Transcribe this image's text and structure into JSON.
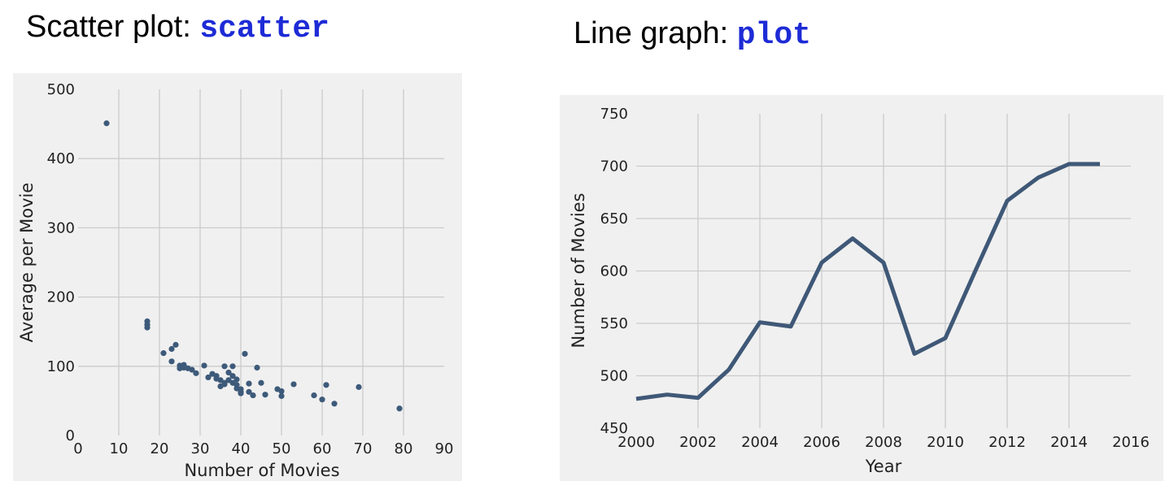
{
  "headings": {
    "scatter": {
      "label": "Scatter plot: ",
      "code": "scatter"
    },
    "line": {
      "label": "Line graph: ",
      "code": "plot"
    }
  },
  "colors": {
    "marker": "#3d5a7a",
    "line": "#3f5877",
    "panel": "#f0f0f0",
    "grid": "#cbcbcb",
    "code": "#1d2bd6"
  },
  "chart_data": [
    {
      "type": "scatter",
      "xlabel": "Number of Movies",
      "ylabel": "Average per Movie",
      "xlim": [
        0,
        90
      ],
      "ylim": [
        0,
        500
      ],
      "xticks": [
        0,
        10,
        20,
        30,
        40,
        50,
        60,
        70,
        80,
        90
      ],
      "yticks": [
        0,
        100,
        200,
        300,
        400,
        500
      ],
      "grid": true,
      "points": [
        [
          7,
          451
        ],
        [
          17,
          165
        ],
        [
          17,
          160
        ],
        [
          17,
          156
        ],
        [
          21,
          119
        ],
        [
          23,
          125
        ],
        [
          24,
          131
        ],
        [
          23,
          107
        ],
        [
          25,
          101
        ],
        [
          25,
          97
        ],
        [
          26,
          102
        ],
        [
          26,
          98
        ],
        [
          27,
          97
        ],
        [
          28,
          95
        ],
        [
          29,
          90
        ],
        [
          31,
          101
        ],
        [
          32,
          84
        ],
        [
          33,
          89
        ],
        [
          34,
          86
        ],
        [
          34,
          82
        ],
        [
          35,
          80
        ],
        [
          35,
          71
        ],
        [
          36,
          100
        ],
        [
          36,
          76
        ],
        [
          36,
          74
        ],
        [
          37,
          91
        ],
        [
          37,
          80
        ],
        [
          38,
          100
        ],
        [
          38,
          86
        ],
        [
          38,
          76
        ],
        [
          39,
          81
        ],
        [
          39,
          73
        ],
        [
          39,
          68
        ],
        [
          40,
          67
        ],
        [
          40,
          63
        ],
        [
          40,
          61
        ],
        [
          41,
          118
        ],
        [
          42,
          75
        ],
        [
          42,
          63
        ],
        [
          43,
          58
        ],
        [
          44,
          98
        ],
        [
          45,
          76
        ],
        [
          46,
          59
        ],
        [
          49,
          67
        ],
        [
          50,
          64
        ],
        [
          50,
          57
        ],
        [
          53,
          74
        ],
        [
          58,
          58
        ],
        [
          60,
          52
        ],
        [
          61,
          73
        ],
        [
          63,
          46
        ],
        [
          69,
          70
        ],
        [
          79,
          39
        ]
      ]
    },
    {
      "type": "line",
      "xlabel": "Year",
      "ylabel": "Number of Movies",
      "xlim": [
        2000,
        2016
      ],
      "ylim": [
        450,
        750
      ],
      "xticks": [
        2000,
        2002,
        2004,
        2006,
        2008,
        2010,
        2012,
        2014,
        2016
      ],
      "yticks": [
        450,
        500,
        550,
        600,
        650,
        700,
        750
      ],
      "grid": true,
      "x": [
        2000,
        2001,
        2002,
        2003,
        2004,
        2005,
        2006,
        2007,
        2008,
        2009,
        2010,
        2011,
        2012,
        2013,
        2014,
        2015
      ],
      "y": [
        478,
        482,
        479,
        506,
        551,
        547,
        608,
        631,
        608,
        521,
        536,
        602,
        667,
        689,
        702,
        702
      ]
    }
  ]
}
